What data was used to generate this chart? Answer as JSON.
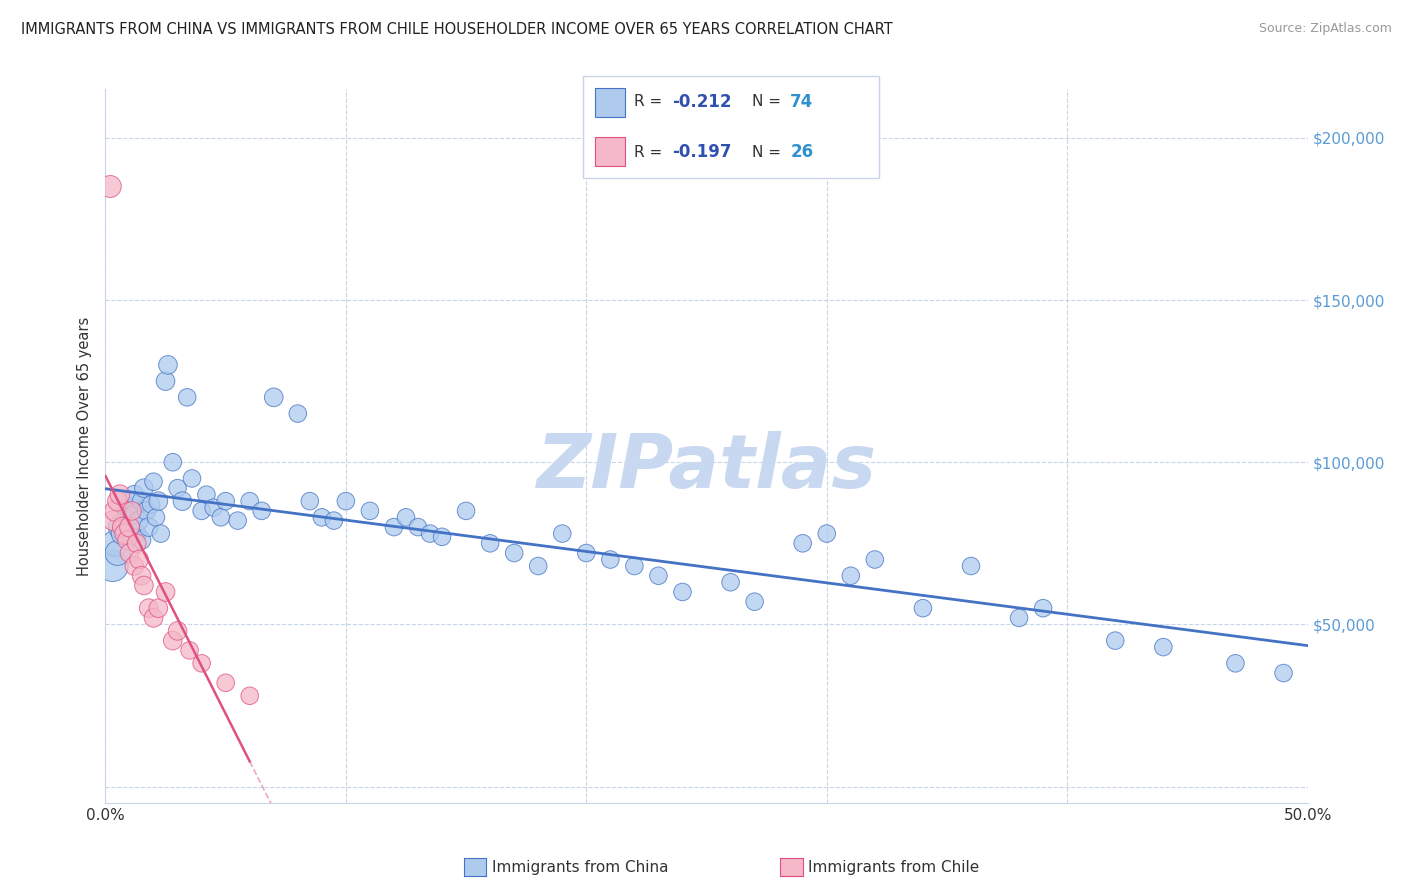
{
  "title": "IMMIGRANTS FROM CHINA VS IMMIGRANTS FROM CHILE HOUSEHOLDER INCOME OVER 65 YEARS CORRELATION CHART",
  "source": "Source: ZipAtlas.com",
  "ylabel": "Householder Income Over 65 years",
  "legend_bottom": [
    "Immigrants from China",
    "Immigrants from Chile"
  ],
  "china_R": -0.212,
  "china_N": 74,
  "chile_R": -0.197,
  "chile_N": 26,
  "color_china": "#aecbee",
  "color_china_line": "#4472c4",
  "color_chile": "#f4b8c8",
  "color_chile_line": "#e05080",
  "background_color": "#ffffff",
  "grid_color": "#c8d4e8",
  "watermark": "ZIPatlas",
  "watermark_color": "#c8d8f0",
  "xlim": [
    0.0,
    0.5
  ],
  "ylim": [
    -5000,
    215000
  ],
  "yticks": [
    0,
    50000,
    100000,
    150000,
    200000
  ],
  "ytick_labels": [
    "",
    "$50,000",
    "$100,000",
    "$150,000",
    "$200,000"
  ],
  "xticks": [
    0.0,
    0.1,
    0.2,
    0.3,
    0.4,
    0.5
  ],
  "xtick_labels": [
    "0.0%",
    "",
    "",
    "",
    "",
    "50.0%"
  ],
  "china_x": [
    0.003,
    0.004,
    0.005,
    0.006,
    0.007,
    0.008,
    0.009,
    0.01,
    0.011,
    0.012,
    0.012,
    0.013,
    0.014,
    0.015,
    0.015,
    0.016,
    0.017,
    0.018,
    0.019,
    0.02,
    0.021,
    0.022,
    0.023,
    0.025,
    0.026,
    0.028,
    0.03,
    0.032,
    0.034,
    0.036,
    0.04,
    0.042,
    0.045,
    0.048,
    0.05,
    0.055,
    0.06,
    0.065,
    0.07,
    0.08,
    0.085,
    0.09,
    0.095,
    0.1,
    0.11,
    0.12,
    0.125,
    0.13,
    0.135,
    0.14,
    0.15,
    0.16,
    0.17,
    0.18,
    0.19,
    0.2,
    0.21,
    0.22,
    0.23,
    0.24,
    0.26,
    0.27,
    0.29,
    0.3,
    0.31,
    0.32,
    0.34,
    0.36,
    0.38,
    0.39,
    0.42,
    0.44,
    0.47,
    0.49
  ],
  "china_y": [
    68000,
    75000,
    72000,
    80000,
    78000,
    82000,
    85000,
    86000,
    88000,
    90000,
    84000,
    78000,
    82000,
    88000,
    76000,
    92000,
    85000,
    80000,
    87000,
    94000,
    83000,
    88000,
    78000,
    125000,
    130000,
    100000,
    92000,
    88000,
    120000,
    95000,
    85000,
    90000,
    86000,
    83000,
    88000,
    82000,
    88000,
    85000,
    120000,
    115000,
    88000,
    83000,
    82000,
    88000,
    85000,
    80000,
    83000,
    80000,
    78000,
    77000,
    85000,
    75000,
    72000,
    68000,
    78000,
    72000,
    70000,
    68000,
    65000,
    60000,
    63000,
    57000,
    75000,
    78000,
    65000,
    70000,
    55000,
    68000,
    52000,
    55000,
    45000,
    43000,
    38000,
    35000
  ],
  "china_size": [
    500,
    350,
    320,
    280,
    250,
    200,
    200,
    220,
    200,
    180,
    180,
    180,
    180,
    180,
    180,
    180,
    180,
    180,
    160,
    160,
    160,
    180,
    160,
    180,
    180,
    160,
    160,
    180,
    160,
    160,
    160,
    160,
    160,
    160,
    160,
    160,
    160,
    160,
    180,
    160,
    160,
    160,
    160,
    160,
    160,
    160,
    160,
    160,
    160,
    160,
    160,
    160,
    160,
    160,
    160,
    160,
    160,
    160,
    160,
    160,
    160,
    160,
    160,
    160,
    160,
    160,
    160,
    160,
    160,
    160,
    160,
    160,
    160,
    160
  ],
  "chile_x": [
    0.002,
    0.003,
    0.004,
    0.005,
    0.006,
    0.007,
    0.008,
    0.009,
    0.01,
    0.01,
    0.011,
    0.012,
    0.013,
    0.014,
    0.015,
    0.016,
    0.018,
    0.02,
    0.022,
    0.025,
    0.028,
    0.03,
    0.035,
    0.04,
    0.05,
    0.06
  ],
  "chile_y": [
    185000,
    82000,
    85000,
    88000,
    90000,
    80000,
    78000,
    76000,
    80000,
    72000,
    85000,
    68000,
    75000,
    70000,
    65000,
    62000,
    55000,
    52000,
    55000,
    60000,
    45000,
    48000,
    42000,
    38000,
    32000,
    28000
  ],
  "chile_size": [
    250,
    200,
    220,
    200,
    200,
    200,
    200,
    180,
    200,
    180,
    180,
    180,
    180,
    180,
    180,
    180,
    180,
    180,
    180,
    180,
    180,
    180,
    160,
    160,
    160,
    160
  ]
}
